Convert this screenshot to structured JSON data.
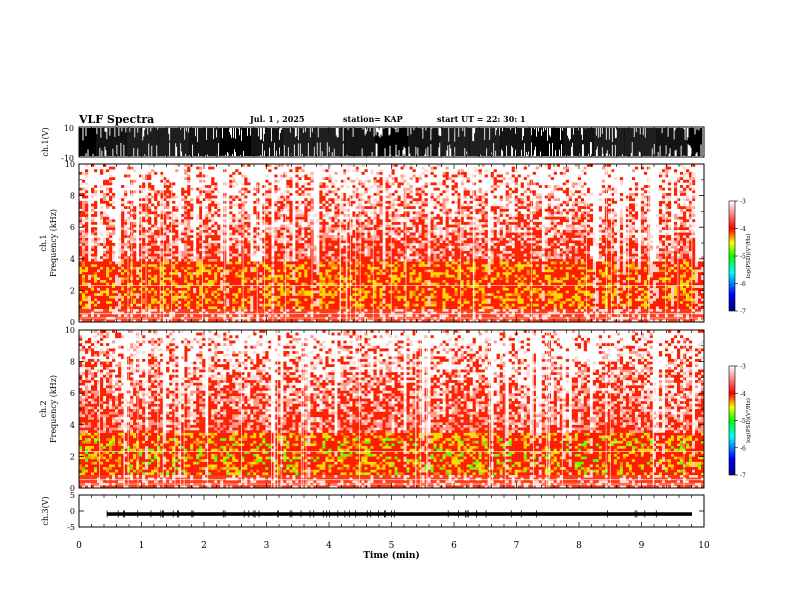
{
  "header": {
    "title": "VLF Spectra",
    "date": "Jul.  1  , 2025",
    "station": "station= KAP",
    "start": "start  UT  =   22: 30: 1"
  },
  "chart_data": [
    {
      "type": "line",
      "ylabel": "ch.1(V)",
      "ylim": [
        -10,
        10
      ],
      "yticks": [
        "10",
        "-10"
      ],
      "xlim": [
        0,
        10
      ],
      "series": [
        {
          "values": "broadband waveform, saturated between -10 and 10 V"
        }
      ]
    },
    {
      "type": "heatmap",
      "ylabel": "ch.1\nFrequency (kHz)",
      "ylim": [
        0,
        10
      ],
      "yticks": [
        "0",
        "2",
        "4",
        "6",
        "8",
        "10"
      ],
      "xlim": [
        0,
        10
      ],
      "colorbar": {
        "label": "log(PSD)(V²/Hz)",
        "range": [
          -7,
          -3
        ],
        "ticks": [
          "-3",
          "-4",
          "-5",
          "-6",
          "-7"
        ],
        "colors": [
          "#000080",
          "#0000ff",
          "#00ffff",
          "#00ff00",
          "#ffff00",
          "#ff0000",
          "#ffffff"
        ]
      },
      "bands": [
        {
          "f_low": 0,
          "f_high": 1.0,
          "level": "high"
        },
        {
          "f_low": 1.0,
          "f_high": 3.8,
          "level": "peak (-4 to -5)"
        },
        {
          "f_low": 3.8,
          "f_high": 10,
          "level": "decaying (-3 to -4)"
        }
      ]
    },
    {
      "type": "heatmap",
      "ylabel": "ch.2\nFrequency (kHz)",
      "ylim": [
        0,
        10
      ],
      "yticks": [
        "0",
        "2",
        "4",
        "6",
        "8",
        "10"
      ],
      "xlim": [
        0,
        10
      ],
      "colorbar": {
        "label": "log(PSD)(V²/Hz)",
        "range": [
          -7,
          -3
        ],
        "ticks": [
          "-3",
          "-4",
          "-5",
          "-6",
          "-7"
        ],
        "colors": [
          "#000080",
          "#0000ff",
          "#00ffff",
          "#00ff00",
          "#ffff00",
          "#ff0000",
          "#ffffff"
        ]
      },
      "bands": [
        {
          "f_low": 0,
          "f_high": 1.0,
          "level": "high"
        },
        {
          "f_low": 1.0,
          "f_high": 3.5,
          "level": "peak (-4 to -6)"
        },
        {
          "f_low": 3.5,
          "f_high": 10,
          "level": "decaying (-3 to -4)"
        }
      ]
    },
    {
      "type": "line",
      "ylabel": "ch.3(V)",
      "ylim": [
        -5,
        5
      ],
      "yticks": [
        "5",
        "0",
        "-5"
      ],
      "xlim": [
        0,
        10
      ],
      "xlabel": "Time (min)",
      "xticks": [
        "0",
        "1",
        "2",
        "3",
        "4",
        "5",
        "6",
        "7",
        "8",
        "9",
        "10"
      ],
      "series": [
        {
          "values": "near-constant level around -1 V"
        }
      ]
    }
  ]
}
